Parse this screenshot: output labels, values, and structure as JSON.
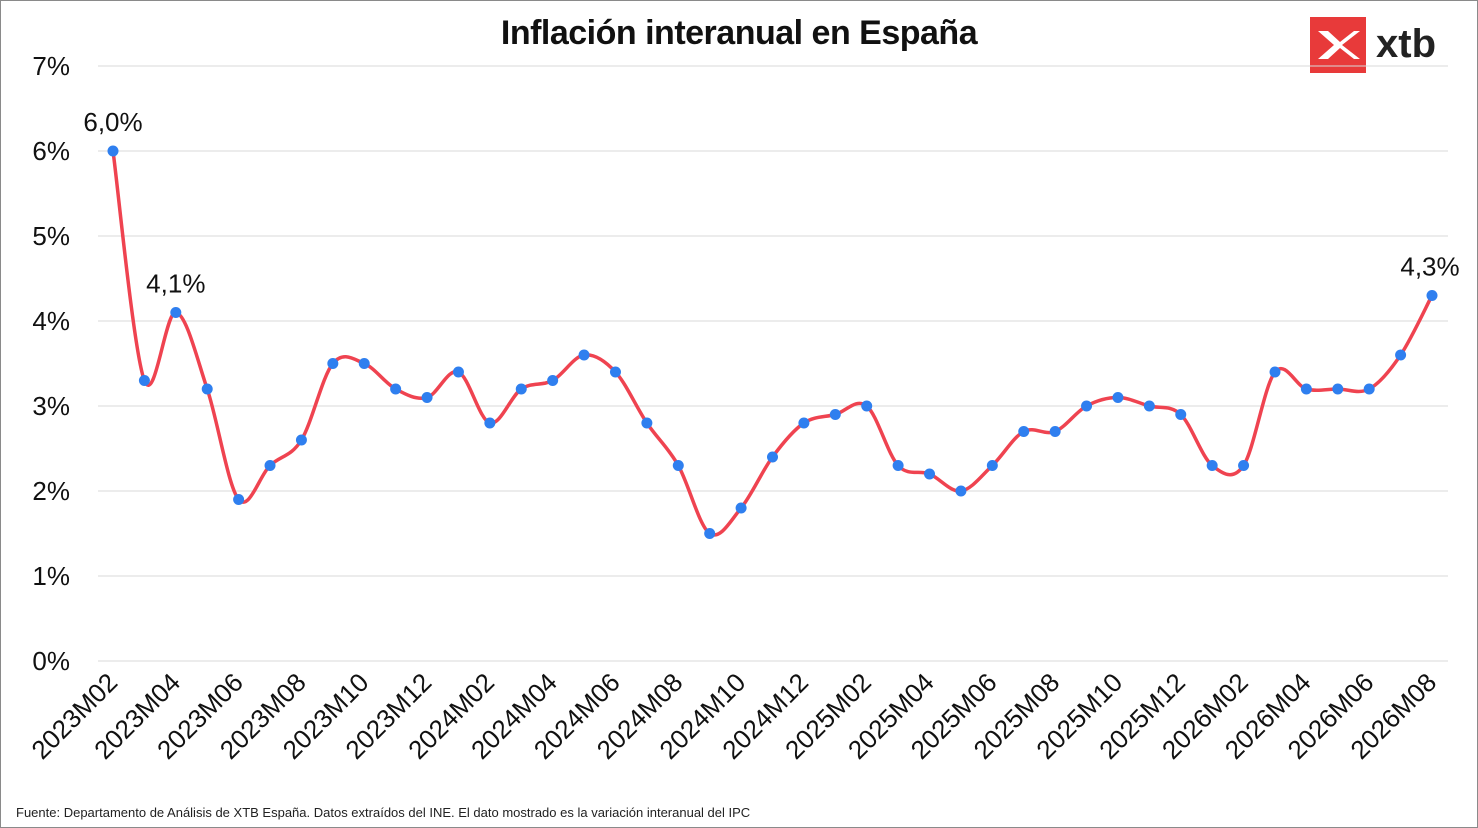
{
  "title": "Inflación interanual en España",
  "logo": {
    "text": "xtb",
    "brand_color": "#e83a3a",
    "icon": "xtb-logo-icon"
  },
  "source": "Fuente: Departamento de Análisis de XTB España. Datos extraídos del INE. El dato mostrado es la variación interanual del IPC",
  "colors": {
    "line": "#ef4350",
    "marker": "#2f7fef",
    "grid": "#d9d9d9"
  },
  "chart_data": {
    "type": "line",
    "title": "Inflación interanual en España",
    "xlabel": "",
    "ylabel": "",
    "ylim": [
      0,
      7
    ],
    "yticks": [
      "0%",
      "1%",
      "2%",
      "3%",
      "4%",
      "5%",
      "6%",
      "7%"
    ],
    "grid": true,
    "legend": "none",
    "categories": [
      "2023M02",
      "2023M03",
      "2023M04",
      "2023M05",
      "2023M06",
      "2023M07",
      "2023M08",
      "2023M09",
      "2023M10",
      "2023M11",
      "2023M12",
      "2024M01",
      "2024M02",
      "2024M03",
      "2024M04",
      "2024M05",
      "2024M06",
      "2024M07",
      "2024M08",
      "2024M09",
      "2024M10",
      "2024M11",
      "2024M12",
      "2025M01",
      "2025M02",
      "2025M03",
      "2025M04",
      "2025M05",
      "2025M06",
      "2025M07",
      "2025M08",
      "2025M09",
      "2025M10",
      "2025M11",
      "2025M12",
      "2026M01",
      "2026M02",
      "2026M03",
      "2026M04",
      "2026M05",
      "2026M06",
      "2026M07",
      "2026M08"
    ],
    "x_tick_labels": [
      "2023M02",
      "2023M04",
      "2023M06",
      "2023M08",
      "2023M10",
      "2023M12",
      "2024M02",
      "2024M04",
      "2024M06",
      "2024M08",
      "2024M10",
      "2024M12",
      "2025M02",
      "2025M04",
      "2025M06",
      "2025M08",
      "2025M10",
      "2025M12",
      "2026M02",
      "2026M04",
      "2026M06",
      "2026M08"
    ],
    "series": [
      {
        "values": [
          6.0,
          3.3,
          4.1,
          3.2,
          1.9,
          2.3,
          2.6,
          3.5,
          3.5,
          3.2,
          3.1,
          3.4,
          2.8,
          3.2,
          3.3,
          3.6,
          3.4,
          2.8,
          2.3,
          1.5,
          1.8,
          2.4,
          2.8,
          2.9,
          3.0,
          2.3,
          2.2,
          2.0,
          2.3,
          2.7,
          2.7,
          3.0,
          3.1,
          3.0,
          2.9,
          2.3,
          2.3,
          3.4,
          3.2,
          3.2,
          3.2,
          3.6,
          4.3
        ]
      }
    ],
    "annotations": [
      {
        "index": 0,
        "text": "6,0%"
      },
      {
        "index": 2,
        "text": "4,1%"
      },
      {
        "index": 42,
        "text": "4,3%"
      }
    ]
  }
}
